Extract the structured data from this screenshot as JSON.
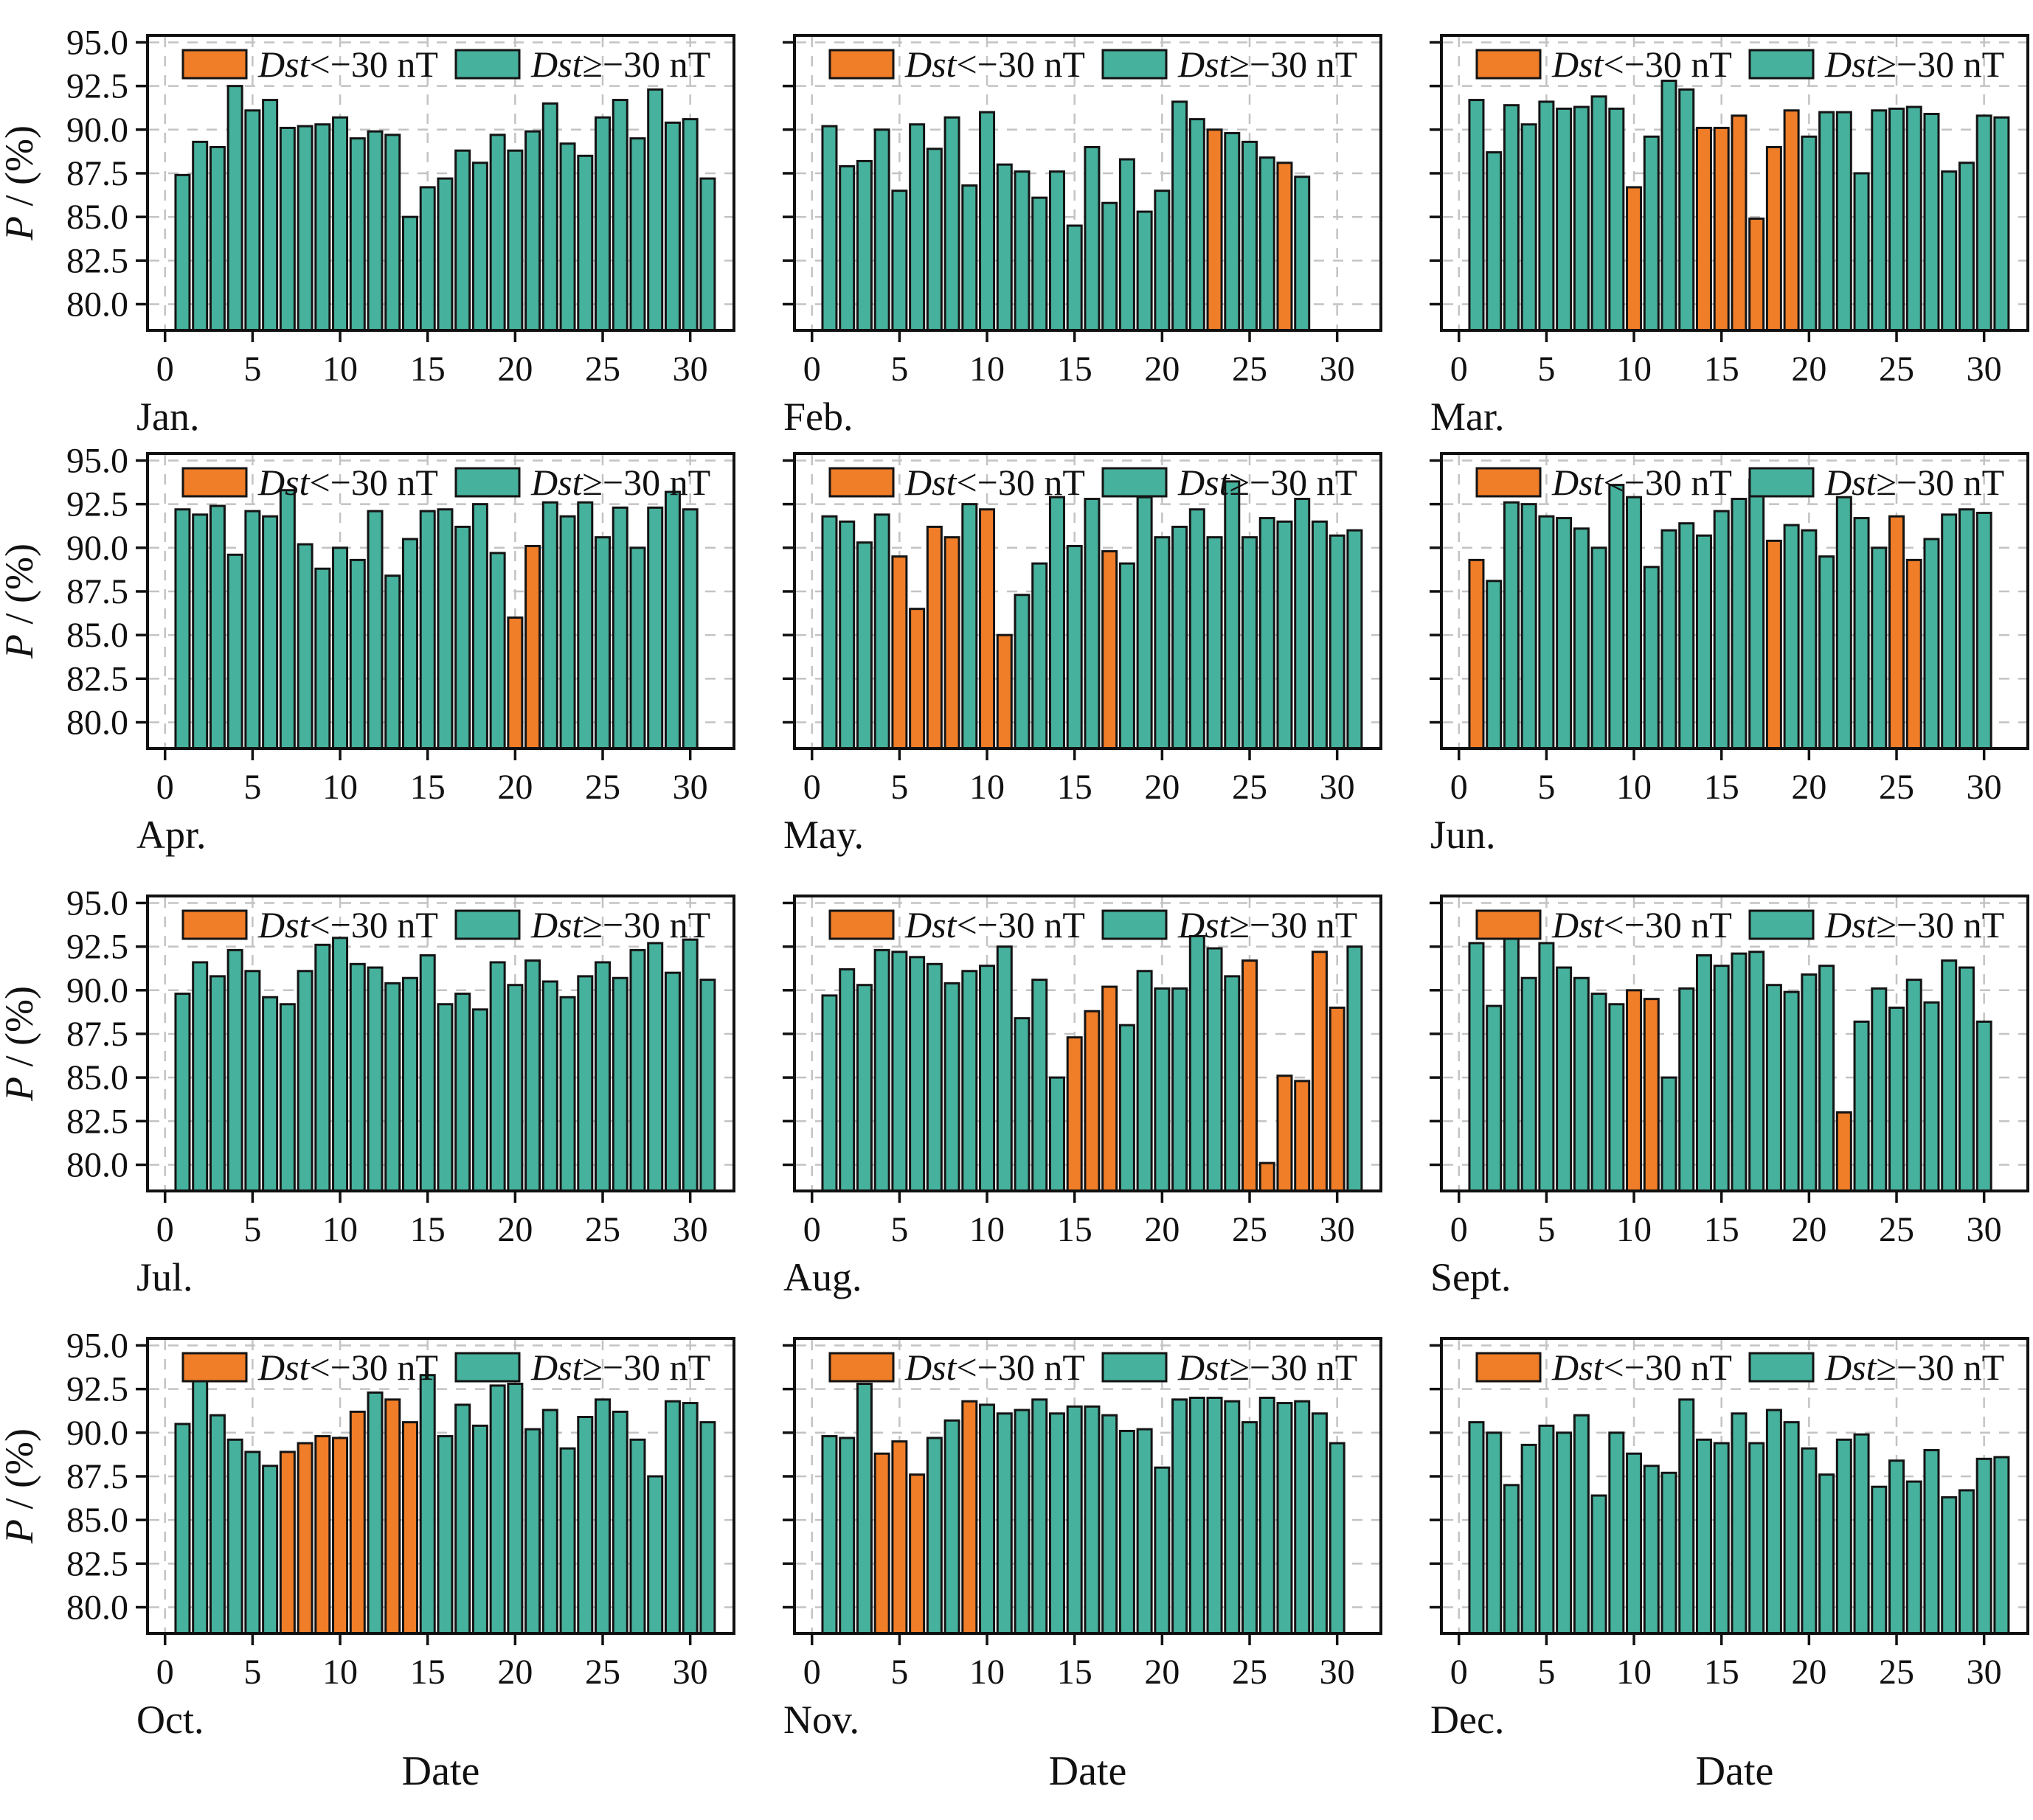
{
  "figure": {
    "ylabel_italic": "P",
    "ylabel_rest": " / (%)",
    "ylabel_full": "P / (%)",
    "xlabel": "Date",
    "colors": {
      "storm": "#f07d28",
      "quiet": "#46b19d",
      "bar_edge": "#141414",
      "grid": "#c3c3c3",
      "axis": "#111111",
      "background": "#ffffff"
    }
  },
  "chart_data": {
    "type": "bar",
    "title": "",
    "xlabel": "Date",
    "ylabel": "P / (%)",
    "ylim": [
      78.5,
      95.4
    ],
    "yticks": [
      80.0,
      82.5,
      85.0,
      87.5,
      90.0,
      92.5,
      95.0
    ],
    "ytick_labels": [
      "80.0",
      "82.5",
      "85.0",
      "87.5",
      "90.0",
      "92.5",
      "95.0"
    ],
    "xticks": [
      0,
      5,
      10,
      15,
      20,
      25,
      30
    ],
    "xtick_labels": [
      "0",
      "5",
      "10",
      "15",
      "20",
      "25",
      "30"
    ],
    "grid": "dashed",
    "legend_position": "upper-inside",
    "legend": [
      {
        "prefix_italic": "Dst",
        "rest": "<−30 nT",
        "key": "storm",
        "color": "#f07d28"
      },
      {
        "prefix_italic": "Dst",
        "rest": "≥−30 nT",
        "key": "quiet",
        "color": "#46b19d"
      }
    ],
    "months": [
      {
        "label": "Jan.",
        "slug": "jan",
        "days": 31,
        "storm_days": [],
        "values": [
          87.4,
          89.3,
          89.0,
          92.5,
          91.1,
          91.7,
          90.1,
          90.2,
          90.3,
          90.7,
          89.5,
          89.9,
          89.7,
          85.0,
          86.7,
          87.2,
          88.8,
          88.1,
          89.7,
          88.8,
          89.9,
          91.5,
          89.2,
          88.5,
          90.7,
          91.7,
          89.5,
          92.3,
          90.4,
          90.6,
          87.2
        ]
      },
      {
        "label": "Feb.",
        "slug": "feb",
        "days": 28,
        "storm_days": [
          23,
          27
        ],
        "values": [
          90.2,
          87.9,
          88.2,
          90.0,
          86.5,
          90.3,
          88.9,
          90.7,
          86.8,
          91.0,
          88.0,
          87.6,
          86.1,
          87.6,
          84.5,
          89.0,
          85.8,
          88.3,
          85.3,
          86.5,
          91.6,
          90.6,
          90.0,
          89.8,
          89.3,
          88.4,
          88.1,
          87.3
        ]
      },
      {
        "label": "Mar.",
        "slug": "mar",
        "days": 31,
        "storm_days": [
          10,
          14,
          15,
          16,
          17,
          18,
          19
        ],
        "values": [
          91.7,
          88.7,
          91.4,
          90.3,
          91.6,
          91.2,
          91.3,
          91.9,
          91.2,
          86.7,
          89.6,
          92.8,
          92.3,
          90.1,
          90.1,
          90.8,
          84.9,
          89.0,
          91.1,
          89.6,
          91.0,
          91.0,
          87.5,
          91.1,
          91.2,
          91.3,
          90.9,
          87.6,
          88.1,
          90.8,
          90.7
        ]
      },
      {
        "label": "Apr.",
        "slug": "apr",
        "days": 30,
        "storm_days": [
          20,
          21
        ],
        "values": [
          92.2,
          91.9,
          92.4,
          89.6,
          92.1,
          91.8,
          93.3,
          90.2,
          88.8,
          90.0,
          89.3,
          92.1,
          88.4,
          90.5,
          92.1,
          92.2,
          91.2,
          92.5,
          89.7,
          86.0,
          90.1,
          92.6,
          91.8,
          92.6,
          90.6,
          92.3,
          90.0,
          92.3,
          93.2,
          92.2
        ]
      },
      {
        "label": "May.",
        "slug": "may",
        "days": 31,
        "storm_days": [
          5,
          6,
          7,
          8,
          10,
          11,
          17
        ],
        "values": [
          91.8,
          91.5,
          90.3,
          91.9,
          89.5,
          86.5,
          91.2,
          90.6,
          92.5,
          92.2,
          85.0,
          87.3,
          89.1,
          92.9,
          90.1,
          92.8,
          89.8,
          89.1,
          92.9,
          90.6,
          91.2,
          92.2,
          90.6,
          93.8,
          90.6,
          91.7,
          91.5,
          92.8,
          91.5,
          90.7,
          91.0
        ]
      },
      {
        "label": "Jun.",
        "slug": "jun",
        "days": 30,
        "storm_days": [
          1,
          18,
          25,
          26
        ],
        "values": [
          89.3,
          88.1,
          92.6,
          92.5,
          91.8,
          91.7,
          91.1,
          90.0,
          93.6,
          92.9,
          88.9,
          91.0,
          91.4,
          90.7,
          92.1,
          92.8,
          93.9,
          90.4,
          91.3,
          91.0,
          89.5,
          92.9,
          91.7,
          90.0,
          91.8,
          89.3,
          90.5,
          91.9,
          92.2,
          92.0
        ]
      },
      {
        "label": "Jul.",
        "slug": "jul",
        "days": 31,
        "storm_days": [],
        "values": [
          89.8,
          91.6,
          90.8,
          92.3,
          91.1,
          89.6,
          89.2,
          91.1,
          92.6,
          93.0,
          91.5,
          91.3,
          90.4,
          90.7,
          92.0,
          89.2,
          89.8,
          88.9,
          91.6,
          90.3,
          91.7,
          90.5,
          89.6,
          90.8,
          91.6,
          90.7,
          92.3,
          92.7,
          91.0,
          92.9,
          90.6
        ]
      },
      {
        "label": "Aug.",
        "slug": "aug",
        "days": 31,
        "storm_days": [
          15,
          16,
          17,
          25,
          26,
          27,
          28,
          29,
          30
        ],
        "values": [
          89.7,
          91.2,
          90.3,
          92.3,
          92.2,
          91.9,
          91.5,
          90.4,
          91.1,
          91.4,
          92.5,
          88.4,
          90.6,
          85.0,
          87.3,
          88.8,
          90.2,
          88.0,
          91.1,
          90.1,
          90.1,
          93.1,
          92.4,
          90.8,
          91.7,
          80.1,
          85.1,
          84.8,
          92.2,
          89.0,
          92.5
        ]
      },
      {
        "label": "Sept.",
        "slug": "sept",
        "days": 30,
        "storm_days": [
          10,
          11,
          22
        ],
        "values": [
          92.7,
          89.1,
          93.2,
          90.7,
          92.7,
          91.3,
          90.7,
          89.8,
          89.2,
          90.0,
          89.5,
          85.0,
          90.1,
          92.0,
          91.4,
          92.1,
          92.2,
          90.3,
          89.9,
          90.9,
          91.4,
          83.0,
          88.2,
          90.1,
          89.0,
          90.6,
          89.3,
          91.7,
          91.3,
          88.2
        ]
      },
      {
        "label": "Oct.",
        "slug": "oct",
        "days": 31,
        "storm_days": [
          7,
          8,
          9,
          10,
          11,
          13,
          14
        ],
        "values": [
          90.5,
          93.3,
          91.0,
          89.6,
          88.9,
          88.1,
          88.9,
          89.4,
          89.8,
          89.7,
          91.2,
          92.3,
          91.9,
          90.6,
          93.3,
          89.8,
          91.6,
          90.4,
          92.7,
          92.8,
          90.2,
          91.3,
          89.1,
          90.9,
          91.9,
          91.2,
          89.6,
          87.5,
          91.8,
          91.7,
          90.6
        ]
      },
      {
        "label": "Nov.",
        "slug": "nov",
        "days": 30,
        "storm_days": [
          4,
          5,
          6,
          9
        ],
        "values": [
          89.8,
          89.7,
          92.8,
          88.8,
          89.5,
          87.6,
          89.7,
          90.7,
          91.8,
          91.6,
          91.1,
          91.3,
          91.9,
          91.1,
          91.5,
          91.5,
          91.0,
          90.1,
          90.2,
          88.0,
          91.9,
          92.0,
          92.0,
          91.8,
          90.6,
          92.0,
          91.7,
          91.8,
          91.1,
          89.4
        ]
      },
      {
        "label": "Dec.",
        "slug": "dec",
        "days": 31,
        "storm_days": [],
        "values": [
          90.6,
          90.0,
          87.0,
          89.3,
          90.4,
          90.0,
          91.0,
          86.4,
          90.0,
          88.8,
          88.1,
          87.7,
          91.9,
          89.6,
          89.4,
          91.1,
          89.4,
          91.3,
          90.6,
          89.1,
          87.6,
          89.6,
          89.9,
          86.9,
          88.4,
          87.2,
          89.0,
          86.3,
          86.7,
          88.5,
          88.6
        ]
      }
    ]
  }
}
